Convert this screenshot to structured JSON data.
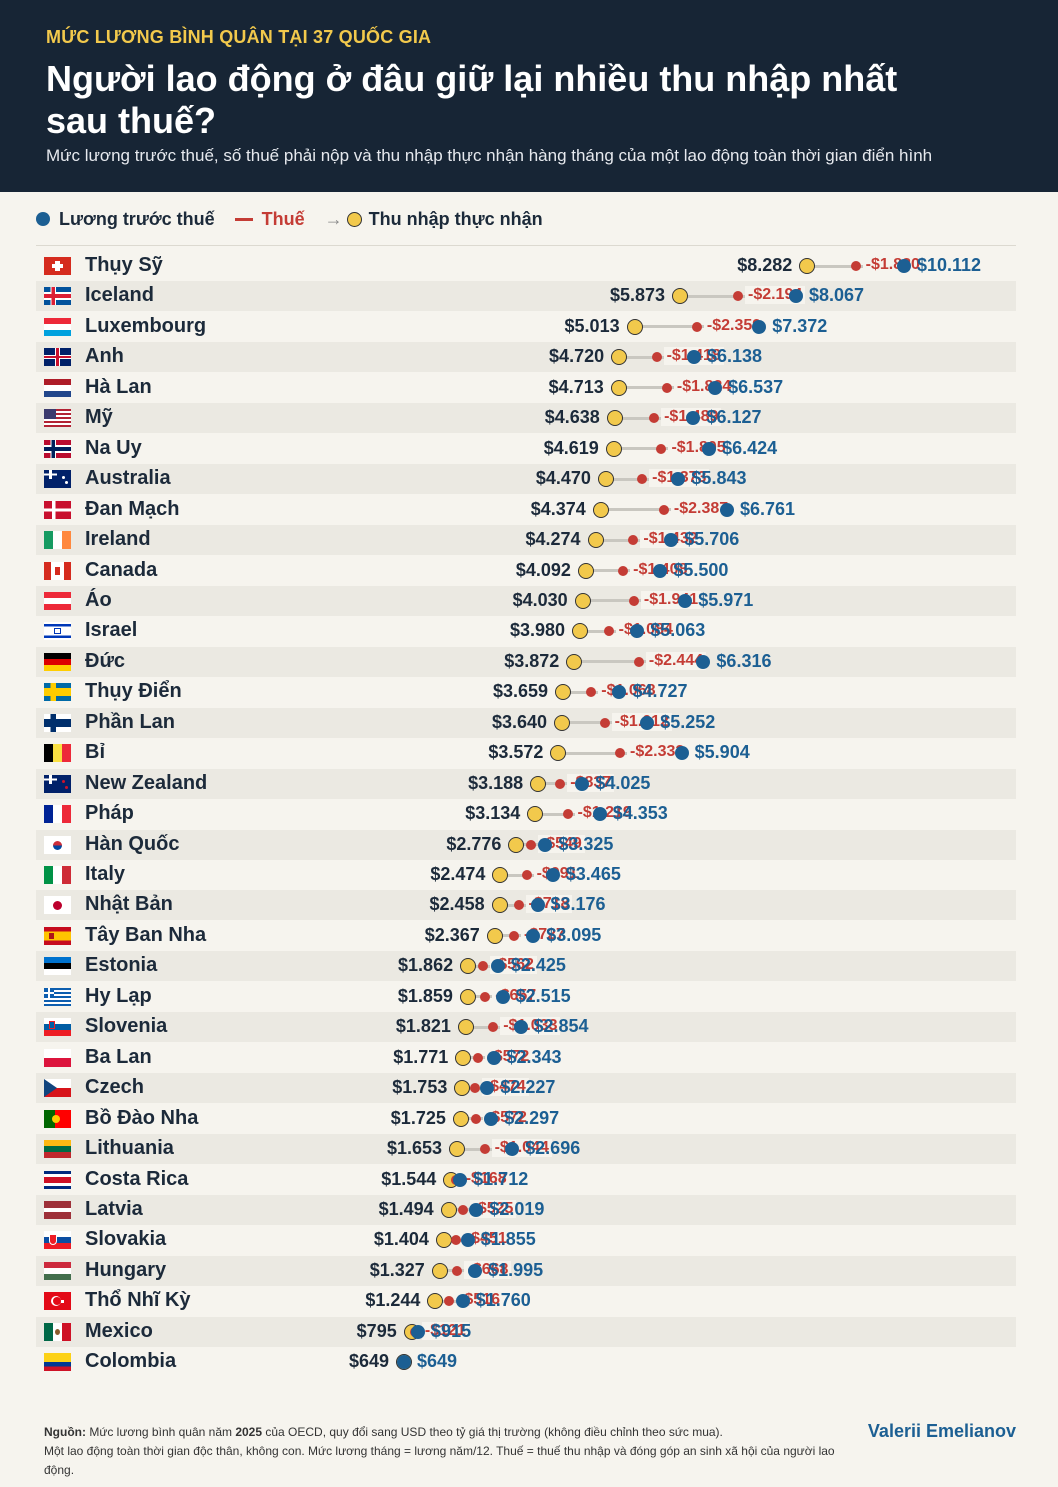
{
  "header": {
    "kicker": "MỨC LƯƠNG BÌNH QUÂN TẠI 37 QUỐC GIA",
    "title": "Người lao động ở đâu giữ lại nhiều thu nhập nhất sau thuế?",
    "subtitle": "Mức lương trước thuế, số thuế phải nộp và thu nhập thực nhận hàng tháng của một lao động toàn thời gian điển hình"
  },
  "legend": {
    "gross": "Lương trước thuế",
    "tax": "Thuế",
    "net": "Thu nhập thực nhận"
  },
  "colors": {
    "gross": "#1c5f93",
    "tax": "#c43c35",
    "net": "#f2c94c",
    "header_bg": "#172535"
  },
  "chart_data": {
    "type": "dumbbell",
    "series": [
      {
        "name": "Thu nhập thực nhận",
        "key": "net"
      },
      {
        "name": "Thuế",
        "key": "tax"
      },
      {
        "name": "Lương trước thuế",
        "key": "gross"
      }
    ],
    "rows": [
      {
        "country": "Thụy Sỹ",
        "flag": "ch",
        "net": 8282,
        "tax": 1830,
        "gross": 10112,
        "net_label": "$8.282",
        "tax_label": "-$1.830",
        "gross_label": "$10.112"
      },
      {
        "country": "Iceland",
        "flag": "is",
        "net": 5873,
        "tax": 2194,
        "gross": 8067,
        "net_label": "$5.873",
        "tax_label": "-$2.194",
        "gross_label": "$8.067"
      },
      {
        "country": "Luxembourg",
        "flag": "lu",
        "net": 5013,
        "tax": 2359,
        "gross": 7372,
        "net_label": "$5.013",
        "tax_label": "-$2.359",
        "gross_label": "$7.372"
      },
      {
        "country": "Anh",
        "flag": "gb",
        "net": 4720,
        "tax": 1418,
        "gross": 6138,
        "net_label": "$4.720",
        "tax_label": "-$1.418",
        "gross_label": "$6.138"
      },
      {
        "country": "Hà Lan",
        "flag": "nl",
        "net": 4713,
        "tax": 1824,
        "gross": 6537,
        "net_label": "$4.713",
        "tax_label": "-$1.824",
        "gross_label": "$6.537"
      },
      {
        "country": "Mỹ",
        "flag": "us",
        "net": 4638,
        "tax": 1489,
        "gross": 6127,
        "net_label": "$4.638",
        "tax_label": "-$1.489",
        "gross_label": "$6.127"
      },
      {
        "country": "Na Uy",
        "flag": "no",
        "net": 4619,
        "tax": 1805,
        "gross": 6424,
        "net_label": "$4.619",
        "tax_label": "-$1.805",
        "gross_label": "$6.424"
      },
      {
        "country": "Australia",
        "flag": "au",
        "net": 4470,
        "tax": 1373,
        "gross": 5843,
        "net_label": "$4.470",
        "tax_label": "-$1.373",
        "gross_label": "$5.843"
      },
      {
        "country": "Đan Mạch",
        "flag": "dk",
        "net": 4374,
        "tax": 2387,
        "gross": 6761,
        "net_label": "$4.374",
        "tax_label": "-$2.387",
        "gross_label": "$6.761"
      },
      {
        "country": "Ireland",
        "flag": "ie",
        "net": 4274,
        "tax": 1432,
        "gross": 5706,
        "net_label": "$4.274",
        "tax_label": "-$1.432",
        "gross_label": "$5.706"
      },
      {
        "country": "Canada",
        "flag": "ca",
        "net": 4092,
        "tax": 1408,
        "gross": 5500,
        "net_label": "$4.092",
        "tax_label": "-$1.408",
        "gross_label": "$5.500"
      },
      {
        "country": "Áo",
        "flag": "at",
        "net": 4030,
        "tax": 1941,
        "gross": 5971,
        "net_label": "$4.030",
        "tax_label": "-$1.941",
        "gross_label": "$5.971"
      },
      {
        "country": "Israel",
        "flag": "il",
        "net": 3980,
        "tax": 1084,
        "gross": 5063,
        "net_label": "$3.980",
        "tax_label": "-$1.084",
        "gross_label": "$5.063"
      },
      {
        "country": "Đức",
        "flag": "de",
        "net": 3872,
        "tax": 2444,
        "gross": 6316,
        "net_label": "$3.872",
        "tax_label": "-$2.444",
        "gross_label": "$6.316"
      },
      {
        "country": "Thụy Điển",
        "flag": "se",
        "net": 3659,
        "tax": 1068,
        "gross": 4727,
        "net_label": "$3.659",
        "tax_label": "-$1.068",
        "gross_label": "$4.727"
      },
      {
        "country": "Phần Lan",
        "flag": "fi",
        "net": 3640,
        "tax": 1612,
        "gross": 5252,
        "net_label": "$3.640",
        "tax_label": "-$1.612",
        "gross_label": "$5.252"
      },
      {
        "country": "Bỉ",
        "flag": "be",
        "net": 3572,
        "tax": 2332,
        "gross": 5904,
        "net_label": "$3.572",
        "tax_label": "-$2.332",
        "gross_label": "$5.904"
      },
      {
        "country": "New Zealand",
        "flag": "nz",
        "net": 3188,
        "tax": 837,
        "gross": 4025,
        "net_label": "$3.188",
        "tax_label": "-$837",
        "gross_label": "$4.025"
      },
      {
        "country": "Pháp",
        "flag": "fr",
        "net": 3134,
        "tax": 1219,
        "gross": 4353,
        "net_label": "$3.134",
        "tax_label": "-$1.219",
        "gross_label": "$4.353"
      },
      {
        "country": "Hàn Quốc",
        "flag": "kr",
        "net": 2776,
        "tax": 549,
        "gross": 3325,
        "net_label": "$2.776",
        "tax_label": "-$549",
        "gross_label": "$3.325"
      },
      {
        "country": "Italy",
        "flag": "it",
        "net": 2474,
        "tax": 991,
        "gross": 3465,
        "net_label": "$2.474",
        "tax_label": "-$991",
        "gross_label": "$3.465"
      },
      {
        "country": "Nhật Bản",
        "flag": "jp",
        "net": 2458,
        "tax": 718,
        "gross": 3176,
        "net_label": "$2.458",
        "tax_label": "-$718",
        "gross_label": "$3.176"
      },
      {
        "country": "Tây Ban Nha",
        "flag": "es",
        "net": 2367,
        "tax": 727,
        "gross": 3095,
        "net_label": "$2.367",
        "tax_label": "-$727",
        "gross_label": "$3.095"
      },
      {
        "country": "Estonia",
        "flag": "ee",
        "net": 1862,
        "tax": 562,
        "gross": 2425,
        "net_label": "$1.862",
        "tax_label": "-$562",
        "gross_label": "$2.425"
      },
      {
        "country": "Hy Lạp",
        "flag": "gr",
        "net": 1859,
        "tax": 657,
        "gross": 2515,
        "net_label": "$1.859",
        "tax_label": "-$657",
        "gross_label": "$2.515"
      },
      {
        "country": "Slovenia",
        "flag": "si",
        "net": 1821,
        "tax": 1033,
        "gross": 2854,
        "net_label": "$1.821",
        "tax_label": "-$1.033",
        "gross_label": "$2.854"
      },
      {
        "country": "Ba Lan",
        "flag": "pl",
        "net": 1771,
        "tax": 572,
        "gross": 2343,
        "net_label": "$1.771",
        "tax_label": "-$572",
        "gross_label": "$2.343"
      },
      {
        "country": "Czech",
        "flag": "cz",
        "net": 1753,
        "tax": 474,
        "gross": 2227,
        "net_label": "$1.753",
        "tax_label": "-$474",
        "gross_label": "$2.227"
      },
      {
        "country": "Bồ Đào Nha",
        "flag": "pt",
        "net": 1725,
        "tax": 572,
        "gross": 2297,
        "net_label": "$1.725",
        "tax_label": "-$572",
        "gross_label": "$2.297"
      },
      {
        "country": "Lithuania",
        "flag": "lt",
        "net": 1653,
        "tax": 1044,
        "gross": 2696,
        "net_label": "$1.653",
        "tax_label": "-$1.044",
        "gross_label": "$2.696"
      },
      {
        "country": "Costa Rica",
        "flag": "cr",
        "net": 1544,
        "tax": 168,
        "gross": 1712,
        "net_label": "$1.544",
        "tax_label": "-$168",
        "gross_label": "$1.712"
      },
      {
        "country": "Latvia",
        "flag": "lv",
        "net": 1494,
        "tax": 525,
        "gross": 2019,
        "net_label": "$1.494",
        "tax_label": "-$525",
        "gross_label": "$2.019"
      },
      {
        "country": "Slovakia",
        "flag": "sk",
        "net": 1404,
        "tax": 451,
        "gross": 1855,
        "net_label": "$1.404",
        "tax_label": "-$451",
        "gross_label": "$1.855"
      },
      {
        "country": "Hungary",
        "flag": "hu",
        "net": 1327,
        "tax": 668,
        "gross": 1995,
        "net_label": "$1.327",
        "tax_label": "-$668",
        "gross_label": "$1.995"
      },
      {
        "country": "Thổ Nhĩ Kỳ",
        "flag": "tr",
        "net": 1244,
        "tax": 516,
        "gross": 1760,
        "net_label": "$1.244",
        "tax_label": "-$516",
        "gross_label": "$1.760"
      },
      {
        "country": "Mexico",
        "flag": "mx",
        "net": 795,
        "tax": 121,
        "gross": 915,
        "net_label": "$795",
        "tax_label": "-$121",
        "gross_label": "$915"
      },
      {
        "country": "Colombia",
        "flag": "co",
        "net": 649,
        "tax": 0,
        "gross": 649,
        "net_label": "$649",
        "tax_label": "",
        "gross_label": "$649"
      }
    ]
  },
  "footer": {
    "source_label": "Nguồn:",
    "source_pre": " Mức lương bình quân năm ",
    "source_year": "2025",
    "source_post": " của OECD, quy đổi sang USD theo tỷ giá thị trường (không điều chỉnh theo sức mua).",
    "note": "Một lao động toàn thời gian độc thân, không con. Mức lương tháng = lương năm/12. Thuế = thuế thu nhập và đóng góp an sinh xã hội của người lao động.",
    "author": "Valerii Emelianov"
  }
}
